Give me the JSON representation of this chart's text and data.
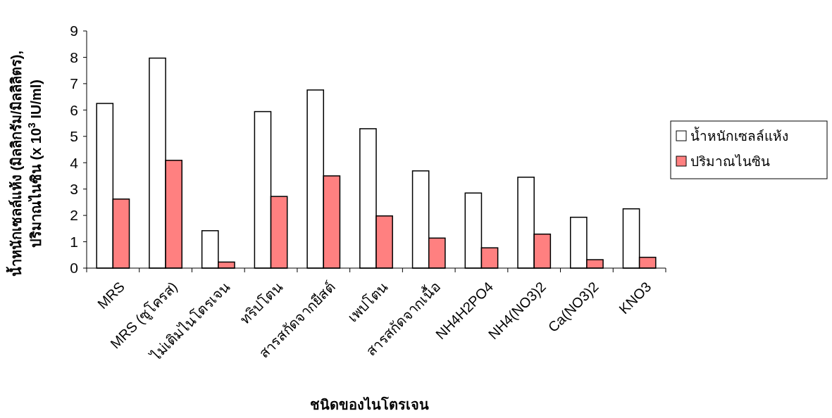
{
  "chart_data": {
    "type": "bar",
    "xlabel": "ชนิดของไนโตรเจน",
    "ylabel": "น้ำหนักเซลล์แห้ง (มิลลิกรัม/มิลลิลิตร),\nปริมาณไนซิน (x 10$^{3}$ IU/ml)",
    "categories": [
      "MRS",
      "MRS (ซูโครส)",
      "ไม่เติมไนโตรเจน",
      "ทริปโตน",
      "สารสกัดจากยีสต์",
      "เพปโตน",
      "สารสกัดจากเนื้อ",
      "NH4H2PO4",
      "NH4(NO3)2",
      "Ca(NO3)2",
      "KNO3"
    ],
    "series": [
      {
        "name": "น้ำหนักเซลล์แห้ง",
        "color": "#ffffff",
        "values": [
          6.25,
          7.97,
          1.42,
          5.94,
          6.76,
          5.29,
          3.69,
          2.85,
          3.45,
          1.93,
          2.25
        ]
      },
      {
        "name": "ปริมาณไนซิน",
        "color": "#ff8080",
        "values": [
          2.62,
          4.09,
          0.23,
          2.72,
          3.5,
          1.98,
          1.14,
          0.77,
          1.29,
          0.32,
          0.41
        ]
      }
    ],
    "ylim": [
      0,
      9
    ],
    "yticks": [
      0,
      1,
      2,
      3,
      4,
      5,
      6,
      7,
      8,
      9
    ],
    "grid": false,
    "legend": "right"
  }
}
